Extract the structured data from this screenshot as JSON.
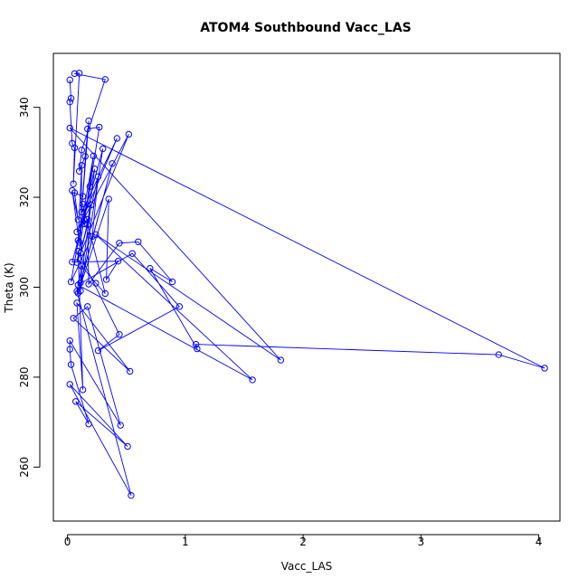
{
  "chart_data": {
    "type": "line",
    "title": "ATOM4 Southbound Vacc_LAS",
    "xlabel": "Vacc_LAS",
    "ylabel": "Theta (K)",
    "xlim": [
      -0.12,
      4.18
    ],
    "ylim": [
      248,
      352
    ],
    "x_ticks": [
      0,
      1,
      2,
      3,
      4
    ],
    "y_ticks": [
      260,
      280,
      300,
      320,
      340
    ],
    "grid": false,
    "legend": "none",
    "series": [
      {
        "color": "#0000ff",
        "marker": "open-circle",
        "points": [
          [
            0.02,
            346.1
          ],
          [
            0.03,
            342.0
          ],
          [
            0.02,
            341.2
          ],
          [
            0.04,
            332.0
          ],
          [
            0.06,
            331.0
          ],
          [
            0.05,
            323.0
          ],
          [
            0.1,
            347.6
          ],
          [
            0.06,
            347.5
          ],
          [
            0.32,
            346.2
          ],
          [
            0.12,
            330.5
          ],
          [
            0.1,
            325.8
          ],
          [
            0.15,
            329.1
          ],
          [
            0.18,
            337.0
          ],
          [
            0.13,
            320.2
          ],
          [
            0.06,
            321.0
          ],
          [
            0.09,
            315.0
          ],
          [
            0.04,
            321.5
          ],
          [
            0.1,
            310.0
          ],
          [
            0.17,
            335.2
          ],
          [
            0.27,
            335.6
          ],
          [
            0.19,
            322.4
          ],
          [
            0.08,
            305.5
          ],
          [
            0.52,
            334.0
          ],
          [
            0.08,
            312.3
          ],
          [
            0.42,
            333.1
          ],
          [
            0.12,
            316.7
          ],
          [
            0.2,
            318.3
          ],
          [
            0.11,
            301.0
          ],
          [
            0.38,
            327.5
          ],
          [
            0.09,
            298.7
          ],
          [
            0.35,
            319.6
          ],
          [
            0.33,
            301.7
          ],
          [
            0.43,
            305.8
          ],
          [
            0.04,
            305.6
          ],
          [
            0.3,
            330.8
          ],
          [
            0.11,
            299.2
          ],
          [
            0.12,
            327.1
          ],
          [
            0.09,
            310.4
          ],
          [
            0.23,
            326.3
          ],
          [
            0.17,
            313.9
          ],
          [
            0.11,
            307.6
          ],
          [
            0.26,
            324.6
          ],
          [
            0.21,
            311.3
          ],
          [
            0.03,
            301.2
          ],
          [
            0.22,
            329.2
          ],
          [
            0.14,
            314.1
          ],
          [
            0.17,
            315.1
          ],
          [
            0.18,
            300.7
          ],
          [
            0.44,
            309.8
          ],
          [
            0.6,
            310.1
          ],
          [
            0.89,
            301.2
          ],
          [
            0.7,
            304.2
          ],
          [
            1.1,
            286.3
          ],
          [
            1.09,
            287.3
          ],
          [
            3.66,
            285.0
          ],
          [
            4.05,
            282.0
          ],
          [
            0.02,
            335.4
          ],
          [
            1.81,
            283.8
          ],
          [
            0.24,
            311.7
          ],
          [
            1.57,
            279.4
          ],
          [
            0.09,
            300.5
          ],
          [
            0.55,
            307.5
          ],
          [
            0.95,
            295.7
          ],
          [
            0.26,
            285.9
          ],
          [
            0.44,
            289.5
          ],
          [
            0.09,
            308.0
          ],
          [
            0.13,
            277.2
          ],
          [
            0.08,
            296.5
          ],
          [
            0.53,
            281.3
          ],
          [
            0.05,
            293.1
          ],
          [
            0.17,
            295.7
          ],
          [
            0.45,
            269.3
          ],
          [
            0.02,
            288.1
          ],
          [
            0.02,
            286.2
          ],
          [
            0.03,
            282.8
          ],
          [
            0.18,
            269.6
          ],
          [
            0.07,
            274.6
          ],
          [
            0.51,
            264.6
          ],
          [
            0.02,
            278.4
          ],
          [
            0.54,
            253.7
          ],
          [
            0.08,
            299.1
          ],
          [
            0.12,
            304.7
          ],
          [
            0.24,
            300.9
          ],
          [
            0.32,
            298.6
          ],
          [
            0.13,
            318.5
          ]
        ]
      }
    ]
  }
}
